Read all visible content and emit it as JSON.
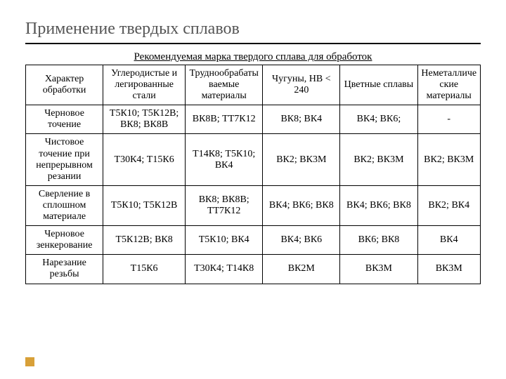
{
  "title": "Применение твердых сплавов",
  "subhead": "Рекомендуемая марка твердого сплава для обработок",
  "table": {
    "headers": {
      "rowLabel": "Характер обработки",
      "cols": [
        "Углеродистые и легированные стали",
        "Труднообрабатываемые материалы",
        "Чугуны, НВ < 240",
        "Цветные сплавы",
        "Неметаллические материалы"
      ]
    },
    "rows": [
      {
        "label": "Черновое точение",
        "cells": [
          "Т5К10; Т5К12В; ВК8; ВК8В",
          "ВК8В; ТТ7К12",
          "ВК8; ВК4",
          "ВК4; ВК6;",
          "-"
        ]
      },
      {
        "label": "Чистовое точение при непрерывном резании",
        "cells": [
          "Т30К4; Т15К6",
          "Т14К8; Т5К10; ВК4",
          "ВК2; ВК3М",
          "ВК2; ВК3М",
          "ВК2; ВК3М"
        ]
      },
      {
        "label": "Сверление в сплошном материале",
        "cells": [
          "Т5К10; Т5К12В",
          "ВК8; ВК8В; ТТ7К12",
          "ВК4; ВК6; ВК8",
          "ВК4; ВК6; ВК8",
          "ВК2; ВК4"
        ]
      },
      {
        "label": "Черновое зенкерование",
        "cells": [
          "Т5К12В; ВК8",
          "Т5К10; ВК4",
          "ВК4; ВК6",
          "ВК6; ВК8",
          "ВК4"
        ]
      },
      {
        "label": "Нарезание резьбы",
        "cells": [
          "Т15К6",
          "Т30К4; Т14К8",
          "ВК2М",
          "ВК3М",
          "ВК3М"
        ]
      }
    ]
  },
  "colors": {
    "titleColor": "#555555",
    "border": "#000000",
    "accent": "#d8a038",
    "background": "#ffffff"
  }
}
